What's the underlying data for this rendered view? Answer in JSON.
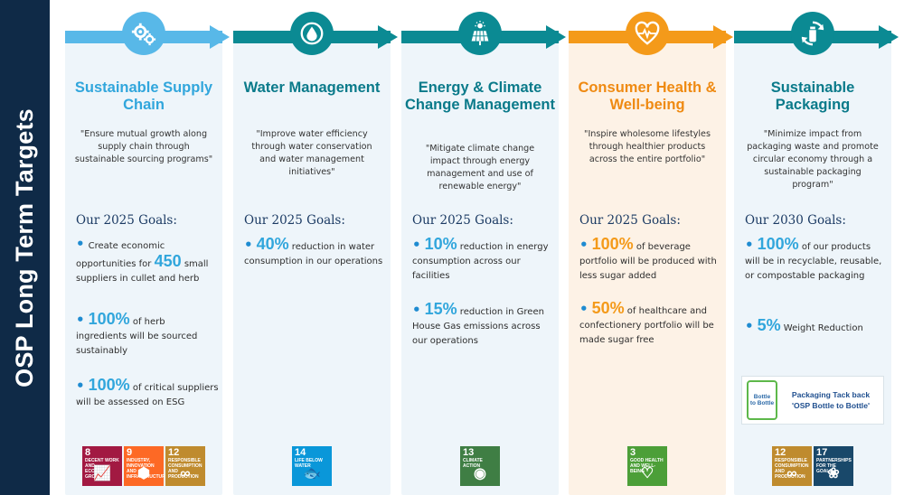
{
  "sidebar": {
    "title": "OSP Long Term Targets"
  },
  "colors": {
    "sidebar_bg": "#0f2a47",
    "blue_light": "#58b8e8",
    "teal": "#0b8a93",
    "orange": "#f49a1a",
    "panel_blue": "#eef5fa",
    "panel_orange": "#fdf2e6",
    "title_blue": "#31a6dc",
    "title_teal": "#0a7a8a",
    "title_orange": "#ef8a12"
  },
  "columns": [
    {
      "icon": "gears-icon",
      "title": "Sustainable Supply Chain",
      "quote": "\"Ensure mutual growth along supply chain through sustainable sourcing programs\"",
      "goals_title": "Our 2025 Goals:",
      "goals": [
        {
          "pre": "Create economic opportunities for ",
          "big": "450",
          "post": " small suppliers in cullet and herb"
        },
        {
          "pre": "",
          "big": "100%",
          "post": " of herb ingredients will be sourced sustainably"
        },
        {
          "pre": "",
          "big": "100%",
          "post": " of critical suppliers will be assessed on ESG"
        }
      ],
      "sdgs": [
        {
          "num": "8",
          "label": "DECENT WORK AND ECONOMIC GROWTH",
          "color": "#a21942",
          "glyph": "📈"
        },
        {
          "num": "9",
          "label": "INDUSTRY, INNOVATION AND INFRASTRUCTURE",
          "color": "#fd6925",
          "glyph": "⬢"
        },
        {
          "num": "12",
          "label": "RESPONSIBLE CONSUMPTION AND PRODUCTION",
          "color": "#bf8b2e",
          "glyph": "∞"
        }
      ]
    },
    {
      "icon": "water-drop-icon",
      "title": "Water Management",
      "quote": "\"Improve water efficiency through water conservation and water management initiatives\"",
      "goals_title": "Our 2025 Goals:",
      "goals": [
        {
          "pre": "",
          "big": "40%",
          "post": " reduction in water consumption in our operations"
        }
      ],
      "sdgs": [
        {
          "num": "14",
          "label": "LIFE BELOW WATER",
          "color": "#0a97d9",
          "glyph": "🐟"
        }
      ]
    },
    {
      "icon": "solar-panel-icon",
      "title": "Energy & Climate Change Management",
      "quote": "\"Mitigate climate change impact through energy management and use of renewable energy\"",
      "goals_title": "Our 2025 Goals:",
      "goals": [
        {
          "pre": "",
          "big": "10%",
          "post": " reduction in energy consumption across our facilities"
        },
        {
          "pre": "",
          "big": "15%",
          "post": " reduction in Green House Gas emissions across our operations"
        }
      ],
      "sdgs": [
        {
          "num": "13",
          "label": "CLIMATE ACTION",
          "color": "#3f7e44",
          "glyph": "◉"
        }
      ]
    },
    {
      "icon": "heart-pulse-icon",
      "title": "Consumer Health & Well-being",
      "quote": "\"Inspire wholesome lifestyles through healthier products across the entire portfolio\"",
      "goals_title": "Our 2025 Goals:",
      "goals": [
        {
          "pre": "",
          "big": "100%",
          "post": " of beverage portfolio will be produced with less sugar added"
        },
        {
          "pre": "",
          "big": "50%",
          "post": " of healthcare and confectionery portfolio will be made sugar free"
        }
      ],
      "sdgs": [
        {
          "num": "3",
          "label": "GOOD HEALTH AND WELL-BEING",
          "color": "#4c9f38",
          "glyph": "♡"
        }
      ]
    },
    {
      "icon": "recycle-bottle-icon",
      "title": "Sustainable Packaging",
      "quote": "\"Minimize impact from packaging waste and promote circular economy through a sustainable packaging program\"",
      "goals_title": "Our 2030 Goals:",
      "goals": [
        {
          "pre": "",
          "big": "100%",
          "post": " of our products will be in recyclable, reusable, or compostable packaging"
        },
        {
          "pre": "",
          "big": "5%",
          "post": " Weight Reduction"
        }
      ],
      "bottle_card": {
        "logo_line1": "Bottle",
        "logo_line2": "to Bottle",
        "text_line1": "Packaging Tack back",
        "text_line2": "'OSP Bottle to Bottle'"
      },
      "sdgs": [
        {
          "num": "12",
          "label": "RESPONSIBLE CONSUMPTION AND PRODUCTION",
          "color": "#bf8b2e",
          "glyph": "∞"
        },
        {
          "num": "17",
          "label": "PARTNERSHIPS FOR THE GOALS",
          "color": "#19486a",
          "glyph": "❀"
        }
      ]
    }
  ]
}
